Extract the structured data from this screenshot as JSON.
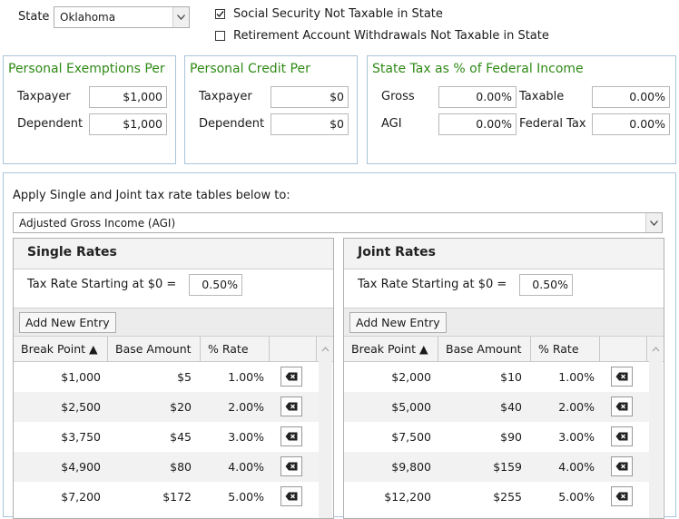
{
  "top": {
    "state_label": "State",
    "state_value": "Oklahoma",
    "ss_not_taxable": {
      "label": "Social Security Not Taxable in State",
      "checked": true
    },
    "retirement_not_taxable": {
      "label": "Retirement Account Withdrawals Not Taxable in State",
      "checked": false
    }
  },
  "exemptions": {
    "title": "Personal Exemptions Per",
    "taxpayer_label": "Taxpayer",
    "taxpayer_value": "$1,000",
    "dependent_label": "Dependent",
    "dependent_value": "$1,000"
  },
  "credit": {
    "title": "Personal Credit Per",
    "taxpayer_label": "Taxpayer",
    "taxpayer_value": "$0",
    "dependent_label": "Dependent",
    "dependent_value": "$0"
  },
  "state_tax_pct": {
    "title": "State Tax as % of Federal Income",
    "gross_label": "Gross",
    "gross_value": "0.00%",
    "taxable_label": "Taxable",
    "taxable_value": "0.00%",
    "agi_label": "AGI",
    "agi_value": "0.00%",
    "federal_tax_label": "Federal Tax",
    "federal_tax_value": "0.00%"
  },
  "apply": {
    "label": "Apply Single and Joint tax rate tables below to:",
    "value": "Adjusted Gross Income (AGI)"
  },
  "single": {
    "title": "Single Rates",
    "start_label": "Tax Rate Starting at $0 =",
    "start_value": "0.50%",
    "add_label": "Add New Entry",
    "col_break": "Break Point ▲",
    "col_base": "Base Amount",
    "col_rate": "% Rate",
    "rows": [
      {
        "bp": "$1,000",
        "base": "$5",
        "rate": "1.00%"
      },
      {
        "bp": "$2,500",
        "base": "$20",
        "rate": "2.00%"
      },
      {
        "bp": "$3,750",
        "base": "$45",
        "rate": "3.00%"
      },
      {
        "bp": "$4,900",
        "base": "$80",
        "rate": "4.00%"
      },
      {
        "bp": "$7,200",
        "base": "$172",
        "rate": "5.00%"
      }
    ]
  },
  "joint": {
    "title": "Joint Rates",
    "start_label": "Tax Rate Starting at $0 =",
    "start_value": "0.50%",
    "add_label": "Add New Entry",
    "col_break": "Break Point ▲",
    "col_base": "Base Amount",
    "col_rate": "% Rate",
    "rows": [
      {
        "bp": "$2,000",
        "base": "$10",
        "rate": "1.00%"
      },
      {
        "bp": "$5,000",
        "base": "$40",
        "rate": "2.00%"
      },
      {
        "bp": "$7,500",
        "base": "$90",
        "rate": "3.00%"
      },
      {
        "bp": "$9,800",
        "base": "$159",
        "rate": "4.00%"
      },
      {
        "bp": "$12,200",
        "base": "$255",
        "rate": "5.00%"
      }
    ]
  }
}
